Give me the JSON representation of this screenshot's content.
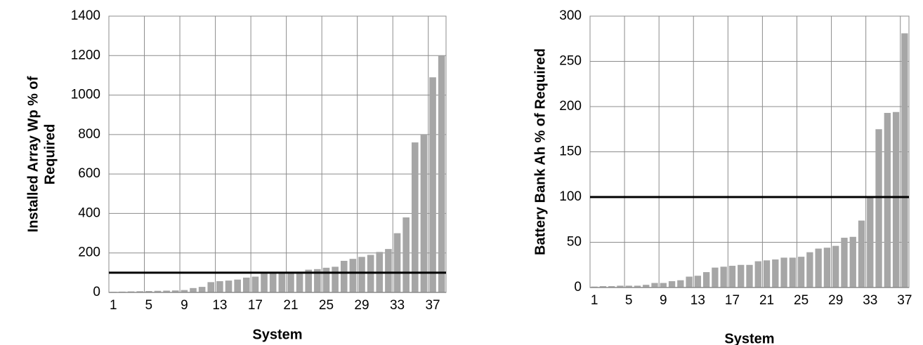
{
  "chart_data": [
    {
      "type": "bar",
      "ylabel": [
        "Installed Array Wp % of",
        "Required"
      ],
      "xlabel": "System",
      "categories": [
        "1",
        null,
        null,
        null,
        "5",
        null,
        null,
        null,
        "9",
        null,
        null,
        null,
        "13",
        null,
        null,
        null,
        "17",
        null,
        null,
        null,
        "21",
        null,
        null,
        null,
        "25",
        null,
        null,
        null,
        "29",
        null,
        null,
        null,
        "33",
        null,
        null,
        null,
        "37",
        null
      ],
      "values": [
        3,
        4,
        5,
        6,
        7,
        8,
        9,
        10,
        12,
        22,
        28,
        52,
        57,
        60,
        65,
        75,
        80,
        95,
        98,
        100,
        100,
        105,
        115,
        118,
        125,
        130,
        160,
        170,
        180,
        190,
        205,
        220,
        300,
        380,
        760,
        800,
        1090,
        1200
      ],
      "color": "#a6a6a6",
      "reference_line": 100,
      "reference_color": "#000000",
      "ylim": [
        0,
        1400
      ],
      "yticks": [
        0,
        200,
        400,
        600,
        800,
        1000,
        1200,
        1400
      ],
      "grid": true
    },
    {
      "type": "bar",
      "ylabel": [
        "Battery Bank Ah % of Required"
      ],
      "xlabel": "System",
      "categories": [
        "1",
        null,
        null,
        null,
        "5",
        null,
        null,
        null,
        "9",
        null,
        null,
        null,
        "13",
        null,
        null,
        null,
        "17",
        null,
        null,
        null,
        "21",
        null,
        null,
        null,
        "25",
        null,
        null,
        null,
        "29",
        null,
        null,
        null,
        "33",
        null,
        null,
        null,
        "37"
      ],
      "values": [
        1,
        1.5,
        1.5,
        2,
        2,
        2,
        3,
        5,
        5,
        7,
        8,
        12,
        13,
        17,
        22,
        23,
        24,
        25,
        25,
        29,
        30,
        31,
        33,
        33,
        34,
        39,
        43,
        44,
        46,
        55,
        56,
        74,
        100,
        175,
        193,
        194,
        281
      ],
      "color": "#a6a6a6",
      "reference_line": 100,
      "reference_color": "#000000",
      "ylim": [
        0,
        300
      ],
      "yticks": [
        0,
        50,
        100,
        150,
        200,
        250,
        300
      ],
      "grid": true
    }
  ]
}
